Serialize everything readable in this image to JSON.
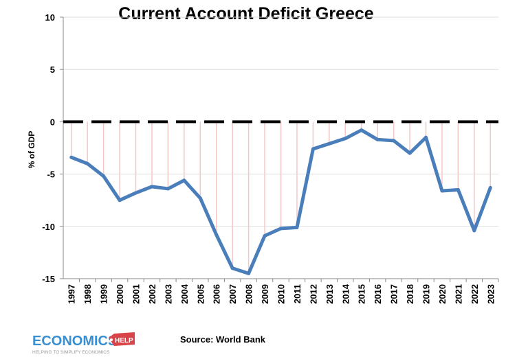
{
  "chart_data": {
    "type": "line",
    "title": "Current Account Deficit Greece",
    "xlabel": "",
    "ylabel": "% of GDP",
    "ylim": [
      -15,
      10
    ],
    "yticks": [
      10,
      5,
      0,
      -5,
      -10,
      -15
    ],
    "grid": true,
    "x": [
      "1997",
      "1998",
      "1999",
      "2000",
      "2001",
      "2002",
      "2003",
      "2004",
      "2005",
      "2006",
      "2007",
      "2008",
      "2009",
      "2010",
      "2011",
      "2012",
      "2013",
      "2014",
      "2015",
      "2016",
      "2017",
      "2018",
      "2019",
      "2020",
      "2021",
      "2022",
      "2023"
    ],
    "values": [
      -3.4,
      -4.0,
      -5.2,
      -7.5,
      -6.8,
      -6.2,
      -6.4,
      -5.6,
      -7.3,
      -10.8,
      -14.0,
      -14.5,
      -10.9,
      -10.2,
      -10.1,
      -2.6,
      -2.1,
      -1.6,
      -0.8,
      -1.7,
      -1.8,
      -3.0,
      -1.5,
      -6.6,
      -6.5,
      -10.4,
      -6.3
    ],
    "reference_line": {
      "value": 0,
      "style": "dashed",
      "color": "#000000"
    },
    "colors": {
      "line": "#4a7ebb",
      "droplines": "#f4c7c7",
      "grid": "#dddddd"
    }
  },
  "footer": {
    "source": "Source: World Bank",
    "logo_main": "ECONOMICS",
    "logo_tag": "HELP",
    "logo_tagline": "HELPING TO SIMPLIFY ECONOMICS"
  }
}
